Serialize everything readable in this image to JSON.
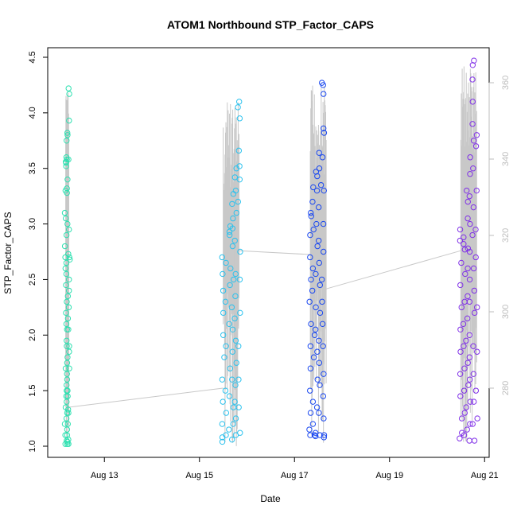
{
  "chart_data": {
    "type": "scatter",
    "title": "ATOM1 Northbound STP_Factor_CAPS",
    "xlabel": "Date",
    "ylabel": "STP_Factor_CAPS",
    "ylim": [
      0.98,
      4.55
    ],
    "y_ticks": [
      "1.0",
      "1.5",
      "2.0",
      "2.5",
      "3.0",
      "3.5",
      "4.0",
      "4.5"
    ],
    "x_ticks": [
      "Aug 13",
      "Aug 15",
      "Aug 17",
      "Aug 19",
      "Aug 21"
    ],
    "secondary_y_ticks": [
      "280",
      "300",
      "320",
      "340",
      "360"
    ],
    "secondary_ylim": [
      264,
      366
    ],
    "grid": false,
    "legend": "none",
    "clusters": [
      {
        "date_range": [
          "Aug 12 04:30",
          "Aug 12 06:00"
        ],
        "color": "#2de0b0",
        "points": [
          [
            0,
            3.55
          ],
          [
            0,
            3.3
          ],
          [
            0,
            3.1
          ],
          [
            0,
            2.8
          ],
          [
            0,
            2.6
          ],
          [
            0,
            2.3
          ],
          [
            0,
            2.1
          ],
          [
            0,
            1.9
          ],
          [
            0,
            1.7
          ],
          [
            0,
            1.5
          ],
          [
            0,
            1.35
          ],
          [
            0,
            1.2
          ],
          [
            0,
            1.05
          ],
          [
            0,
            1.02
          ],
          [
            0.1,
            3.56
          ],
          [
            0.1,
            3.05
          ],
          [
            0.1,
            2.7
          ],
          [
            0.1,
            2.45
          ],
          [
            0.1,
            2.2
          ],
          [
            0.1,
            1.8
          ],
          [
            0.1,
            1.6
          ],
          [
            0.1,
            1.4
          ],
          [
            0.1,
            1.25
          ],
          [
            0.1,
            1.1
          ],
          [
            0.2,
            3.58
          ],
          [
            0.2,
            3.52
          ],
          [
            0.2,
            3.32
          ],
          [
            0.2,
            2.9
          ],
          [
            0.2,
            2.55
          ],
          [
            0.2,
            2.05
          ],
          [
            0.2,
            1.75
          ],
          [
            0.2,
            1.45
          ],
          [
            0.2,
            1.3
          ],
          [
            0.2,
            1.02
          ],
          [
            0.3,
            3.8
          ],
          [
            0.3,
            3.75
          ],
          [
            0.3,
            3.6
          ],
          [
            0.3,
            3.4
          ],
          [
            0.3,
            3.0
          ],
          [
            0.3,
            2.65
          ],
          [
            0.3,
            2.35
          ],
          [
            0.3,
            1.95
          ],
          [
            0.3,
            1.55
          ],
          [
            0.3,
            1.15
          ],
          [
            0.3,
            1.04
          ],
          [
            0.4,
            4.22
          ],
          [
            0.4,
            4.17
          ],
          [
            0.4,
            3.93
          ],
          [
            0.4,
            3.82
          ],
          [
            0.4,
            3.28
          ],
          [
            0.4,
            2.95
          ],
          [
            0.4,
            2.7
          ],
          [
            0.4,
            2.5
          ],
          [
            0.4,
            2.25
          ],
          [
            0.4,
            2.05
          ],
          [
            0.4,
            1.85
          ],
          [
            0.4,
            1.65
          ],
          [
            0.4,
            1.45
          ],
          [
            0.4,
            1.3
          ],
          [
            0.4,
            1.1
          ],
          [
            0.4,
            1.02
          ],
          [
            0.5,
            3.58
          ],
          [
            0.5,
            2.73
          ],
          [
            0.5,
            2.68
          ],
          [
            0.5,
            2.4
          ],
          [
            0.5,
            2.15
          ],
          [
            0.5,
            1.9
          ],
          [
            0.5,
            1.7
          ],
          [
            0.5,
            1.5
          ],
          [
            0.5,
            1.33
          ],
          [
            0.5,
            1.2
          ],
          [
            0.5,
            1.06
          ]
        ]
      },
      {
        "date_range": [
          "Aug 15 12:00",
          "Aug 15 20:00"
        ],
        "color": "#2cc2ee",
        "points": [
          [
            0,
            2.7
          ],
          [
            0,
            2.55
          ],
          [
            0,
            2.4
          ],
          [
            0,
            2.2
          ],
          [
            0,
            2.0
          ],
          [
            0,
            1.8
          ],
          [
            0,
            1.6
          ],
          [
            0,
            1.4
          ],
          [
            0,
            1.2
          ],
          [
            0,
            1.08
          ],
          [
            0,
            1.04
          ],
          [
            0.1,
            2.65
          ],
          [
            0.1,
            2.3
          ],
          [
            0.1,
            1.9
          ],
          [
            0.1,
            1.5
          ],
          [
            0.1,
            1.3
          ],
          [
            0.1,
            1.1
          ],
          [
            0.2,
            2.98
          ],
          [
            0.2,
            2.93
          ],
          [
            0.2,
            2.9
          ],
          [
            0.2,
            2.6
          ],
          [
            0.2,
            2.45
          ],
          [
            0.2,
            2.1
          ],
          [
            0.2,
            1.7
          ],
          [
            0.2,
            1.45
          ],
          [
            0.2,
            1.15
          ],
          [
            0.3,
            3.27
          ],
          [
            0.3,
            3.18
          ],
          [
            0.3,
            3.05
          ],
          [
            0.3,
            2.96
          ],
          [
            0.3,
            2.8
          ],
          [
            0.3,
            2.5
          ],
          [
            0.3,
            2.25
          ],
          [
            0.3,
            2.05
          ],
          [
            0.3,
            1.85
          ],
          [
            0.3,
            1.6
          ],
          [
            0.3,
            1.35
          ],
          [
            0.3,
            1.2
          ],
          [
            0.3,
            1.06
          ],
          [
            0.4,
            3.5
          ],
          [
            0.4,
            3.42
          ],
          [
            0.4,
            3.3
          ],
          [
            0.4,
            3.1
          ],
          [
            0.4,
            2.85
          ],
          [
            0.4,
            2.55
          ],
          [
            0.4,
            2.35
          ],
          [
            0.4,
            2.15
          ],
          [
            0.4,
            1.95
          ],
          [
            0.4,
            1.75
          ],
          [
            0.4,
            1.55
          ],
          [
            0.4,
            1.4
          ],
          [
            0.4,
            1.25
          ],
          [
            0.4,
            1.1
          ],
          [
            0.5,
            4.1
          ],
          [
            0.5,
            4.05
          ],
          [
            0.5,
            3.95
          ],
          [
            0.5,
            3.66
          ],
          [
            0.5,
            3.52
          ],
          [
            0.5,
            3.4
          ],
          [
            0.5,
            3.2
          ],
          [
            0.5,
            2.75
          ],
          [
            0.5,
            2.5
          ],
          [
            0.5,
            2.2
          ],
          [
            0.5,
            1.9
          ],
          [
            0.5,
            1.6
          ],
          [
            0.5,
            1.35
          ],
          [
            0.5,
            1.12
          ]
        ]
      },
      {
        "date_range": [
          "Aug 17 08:00",
          "Aug 17 16:00"
        ],
        "color": "#1a48f0",
        "points": [
          [
            0,
            3.1
          ],
          [
            0,
            3.07
          ],
          [
            0,
            2.9
          ],
          [
            0,
            2.7
          ],
          [
            0,
            2.5
          ],
          [
            0,
            2.3
          ],
          [
            0,
            2.1
          ],
          [
            0,
            1.9
          ],
          [
            0,
            1.7
          ],
          [
            0,
            1.5
          ],
          [
            0,
            1.3
          ],
          [
            0,
            1.15
          ],
          [
            0,
            1.1
          ],
          [
            0.1,
            3.33
          ],
          [
            0.1,
            3.2
          ],
          [
            0.1,
            2.95
          ],
          [
            0.1,
            2.6
          ],
          [
            0.1,
            2.4
          ],
          [
            0.1,
            2.0
          ],
          [
            0.1,
            1.8
          ],
          [
            0.1,
            1.4
          ],
          [
            0.1,
            1.2
          ],
          [
            0.1,
            1.1
          ],
          [
            0.2,
            3.47
          ],
          [
            0.2,
            3.43
          ],
          [
            0.2,
            3.3
          ],
          [
            0.2,
            3.0
          ],
          [
            0.2,
            2.8
          ],
          [
            0.2,
            2.55
          ],
          [
            0.2,
            2.25
          ],
          [
            0.2,
            2.05
          ],
          [
            0.2,
            1.85
          ],
          [
            0.2,
            1.6
          ],
          [
            0.2,
            1.35
          ],
          [
            0.2,
            1.12
          ],
          [
            0.2,
            1.09
          ],
          [
            0.3,
            3.64
          ],
          [
            0.3,
            3.5
          ],
          [
            0.3,
            3.35
          ],
          [
            0.3,
            3.15
          ],
          [
            0.3,
            2.85
          ],
          [
            0.3,
            2.65
          ],
          [
            0.3,
            2.45
          ],
          [
            0.3,
            2.2
          ],
          [
            0.3,
            1.95
          ],
          [
            0.3,
            1.75
          ],
          [
            0.3,
            1.55
          ],
          [
            0.3,
            1.3
          ],
          [
            0.3,
            1.1
          ],
          [
            0.4,
            4.27
          ],
          [
            0.4,
            4.25
          ],
          [
            0.4,
            4.17
          ],
          [
            0.4,
            3.86
          ],
          [
            0.4,
            3.82
          ],
          [
            0.4,
            3.6
          ],
          [
            0.4,
            3.3
          ],
          [
            0.4,
            3.0
          ],
          [
            0.4,
            2.75
          ],
          [
            0.4,
            2.5
          ],
          [
            0.4,
            2.3
          ],
          [
            0.4,
            2.1
          ],
          [
            0.4,
            1.9
          ],
          [
            0.4,
            1.65
          ],
          [
            0.4,
            1.45
          ],
          [
            0.4,
            1.25
          ],
          [
            0.4,
            1.1
          ],
          [
            0.4,
            1.08
          ]
        ]
      },
      {
        "date_range": [
          "Aug 20 12:00",
          "Aug 20 20:00"
        ],
        "color": "#8030e8",
        "points": [
          [
            0,
            2.95
          ],
          [
            0,
            2.85
          ],
          [
            0,
            2.65
          ],
          [
            0,
            2.45
          ],
          [
            0,
            2.25
          ],
          [
            0,
            2.05
          ],
          [
            0,
            1.85
          ],
          [
            0,
            1.65
          ],
          [
            0,
            1.45
          ],
          [
            0,
            1.25
          ],
          [
            0,
            1.12
          ],
          [
            0,
            1.07
          ],
          [
            0.1,
            2.88
          ],
          [
            0.1,
            2.82
          ],
          [
            0.1,
            2.77
          ],
          [
            0.1,
            2.55
          ],
          [
            0.1,
            2.3
          ],
          [
            0.1,
            2.1
          ],
          [
            0.1,
            1.9
          ],
          [
            0.1,
            1.7
          ],
          [
            0.1,
            1.5
          ],
          [
            0.1,
            1.3
          ],
          [
            0.1,
            1.1
          ],
          [
            0.2,
            3.3
          ],
          [
            0.2,
            3.2
          ],
          [
            0.2,
            3.05
          ],
          [
            0.2,
            2.78
          ],
          [
            0.2,
            2.6
          ],
          [
            0.2,
            2.35
          ],
          [
            0.2,
            2.15
          ],
          [
            0.2,
            1.95
          ],
          [
            0.2,
            1.75
          ],
          [
            0.2,
            1.55
          ],
          [
            0.2,
            1.35
          ],
          [
            0.2,
            1.15
          ],
          [
            0.3,
            3.6
          ],
          [
            0.3,
            3.45
          ],
          [
            0.3,
            3.25
          ],
          [
            0.3,
            3.0
          ],
          [
            0.3,
            2.75
          ],
          [
            0.3,
            2.5
          ],
          [
            0.3,
            2.3
          ],
          [
            0.3,
            2.0
          ],
          [
            0.3,
            1.8
          ],
          [
            0.3,
            1.6
          ],
          [
            0.3,
            1.4
          ],
          [
            0.3,
            1.2
          ],
          [
            0.3,
            1.05
          ],
          [
            0.4,
            4.47
          ],
          [
            0.4,
            4.43
          ],
          [
            0.4,
            4.3
          ],
          [
            0.4,
            4.1
          ],
          [
            0.4,
            3.9
          ],
          [
            0.4,
            3.75
          ],
          [
            0.4,
            3.5
          ],
          [
            0.4,
            3.15
          ],
          [
            0.4,
            2.9
          ],
          [
            0.4,
            2.6
          ],
          [
            0.4,
            2.4
          ],
          [
            0.4,
            2.2
          ],
          [
            0.4,
            1.9
          ],
          [
            0.4,
            1.65
          ],
          [
            0.4,
            1.4
          ],
          [
            0.4,
            1.2
          ],
          [
            0.4,
            1.05
          ],
          [
            0.5,
            3.8
          ],
          [
            0.5,
            3.7
          ],
          [
            0.5,
            3.3
          ],
          [
            0.5,
            2.95
          ],
          [
            0.5,
            2.7
          ],
          [
            0.5,
            2.25
          ],
          [
            0.5,
            1.85
          ],
          [
            0.5,
            1.5
          ],
          [
            0.5,
            1.25
          ]
        ]
      }
    ],
    "secondary_series_color": "#c8c8c8",
    "secondary_links": [
      {
        "from": [
          "Aug 12 06:00",
          275
        ],
        "to": [
          "Aug 15 12:00",
          280
        ]
      },
      {
        "from": [
          "Aug 15 20:00",
          316
        ],
        "to": [
          "Aug 17 08:00",
          315
        ]
      },
      {
        "from": [
          "Aug 17 16:00",
          306
        ],
        "to": [
          "Aug 20 12:00",
          316
        ]
      }
    ]
  }
}
